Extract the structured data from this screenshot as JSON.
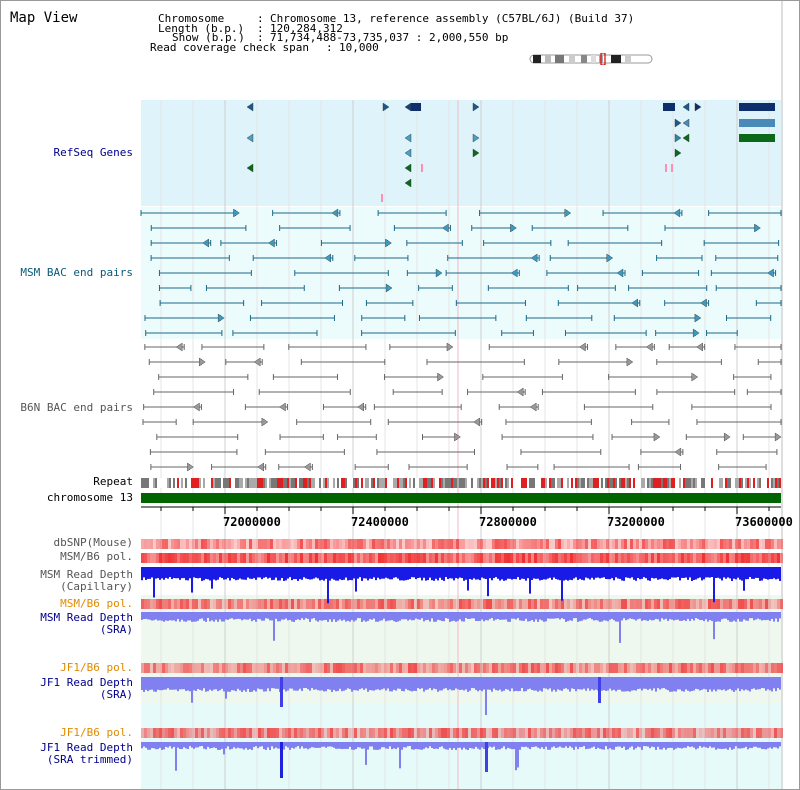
{
  "title": "Map View",
  "info": {
    "chromosome_key": "Chromosome",
    "chromosome_val": "Chromosome 13, reference assembly (C57BL/6J) (Build 37)",
    "length_key": "Length (b.p.)",
    "length_val": "120,284,312",
    "show_key": "Show (b.p.)",
    "show_val": "71,734,488-73,735,037 : 2,000,550 bp",
    "coverage_key": "Read coverage check span",
    "coverage_val": "10,000"
  },
  "tracks": {
    "refseq": "RefSeq Genes",
    "msm_bac": "MSM BAC end pairs",
    "b6n_bac": "B6N BAC end pairs",
    "repeat": "Repeat",
    "chromosome": "chromosome 13",
    "dbsnp": "dbSNP(Mouse)",
    "msm_b6_pol_1": "MSM/B6 pol.",
    "msm_depth_cap_1": "MSM Read Depth",
    "msm_depth_cap_2": "(Capillary)",
    "msm_b6_pol_2": "MSM/B6 pol.",
    "msm_depth_sra_1": "MSM Read Depth",
    "msm_depth_sra_2": "(SRA)",
    "jf1_b6_pol_1": "JF1/B6 pol.",
    "jf1_depth_sra_1": "JF1 Read Depth",
    "jf1_depth_sra_2": "(SRA)",
    "jf1_b6_pol_2": "JF1/B6 pol.",
    "jf1_depth_trim_1": "JF1 Read Depth",
    "jf1_depth_trim_2": "(SRA trimmed)"
  },
  "axis_ticks": [
    "72000000",
    "72400000",
    "72800000",
    "73200000",
    "73600000"
  ],
  "colors": {
    "refseq_bg": "#dff3fb",
    "bac_bg": "#ecfbfb",
    "label_blue": "#00008b",
    "label_teal": "#0a5a7a",
    "label_gray": "#555555",
    "label_orange": "#e08a00",
    "chromosome_green": "#006400",
    "snp_red": "#f05050",
    "depth_blue": "#1a1ae6",
    "depth_light": "#8080f0"
  },
  "icons": {
    "ideogram": "chromosome-ideogram",
    "gene_arrow": "arrow-glyph"
  }
}
